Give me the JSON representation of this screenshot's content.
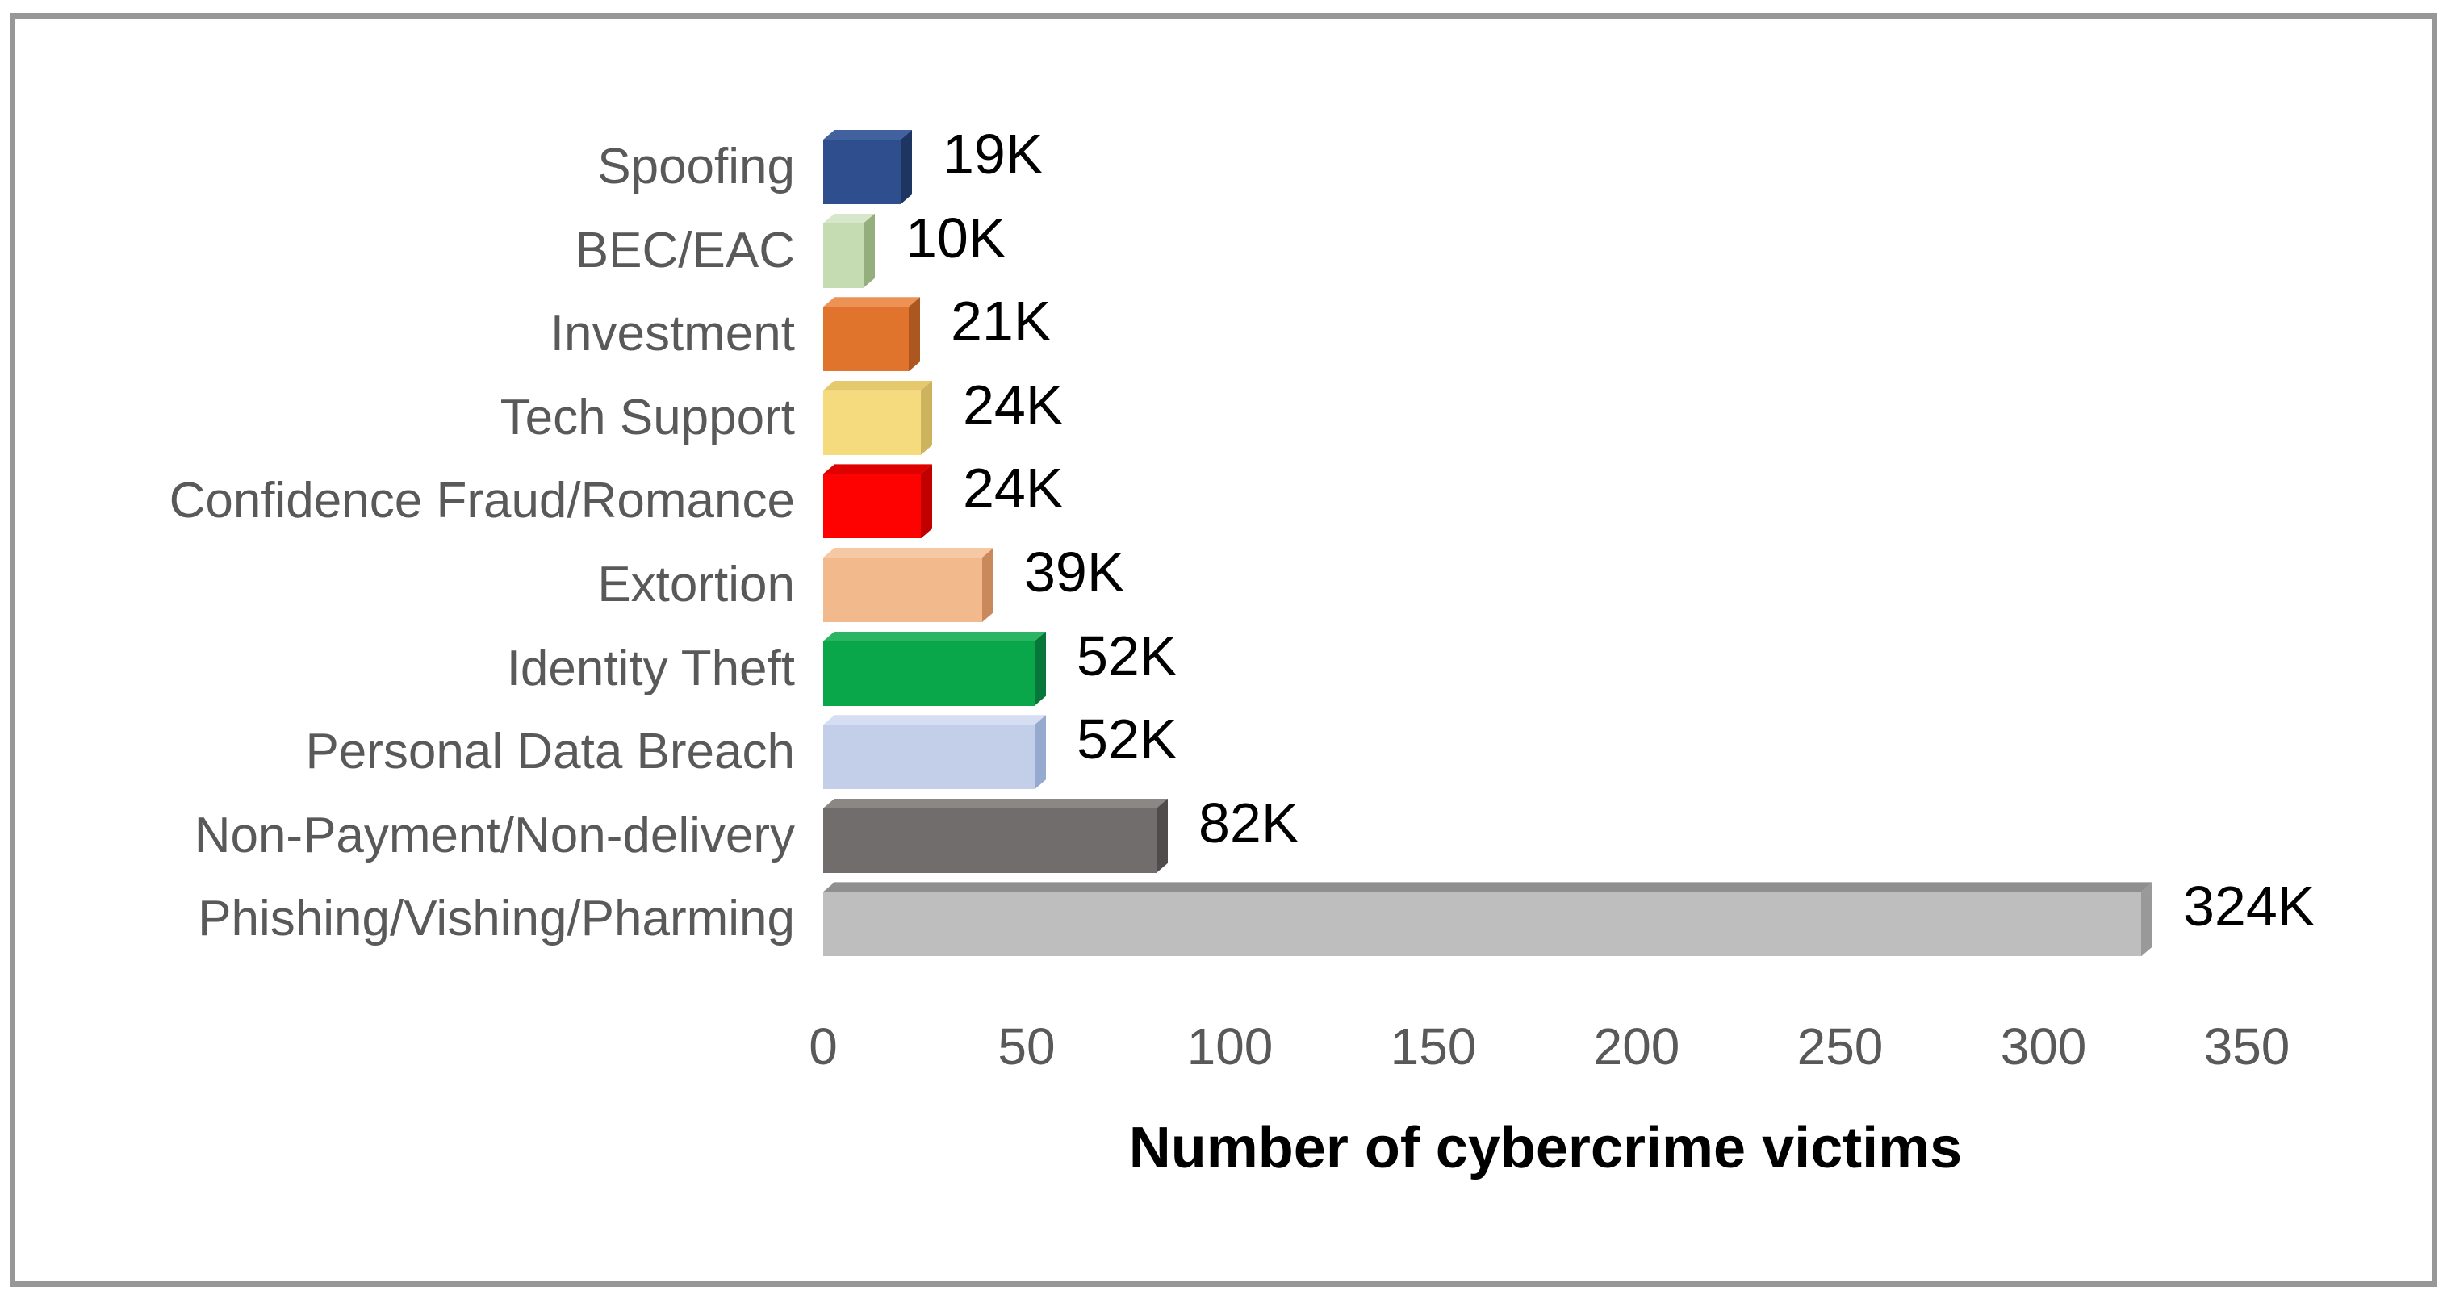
{
  "figure": {
    "background_color": "#FFFFFF",
    "border_color": "#979797"
  },
  "chart_data": {
    "type": "bar",
    "orientation": "horizontal",
    "title": "",
    "xlabel": "Number of cybercrime victims",
    "ylabel": "",
    "units": "thousands of victims",
    "xlim": [
      0,
      350
    ],
    "x_tick_labels": [
      "0",
      "50",
      "100",
      "150",
      "200",
      "250",
      "300",
      "350"
    ],
    "grid": false,
    "legend": "none",
    "category_label_color": "#595959",
    "tick_label_color": "#595959",
    "value_label_color": "#000000",
    "categories": [
      "Spoofing",
      "BEC/EAC",
      "Investment",
      "Tech Support",
      "Confidence Fraud/Romance",
      "Extortion",
      "Identity Theft",
      "Personal Data Breach",
      "Non-Payment/Non-delivery",
      "Phishing/Vishing/Pharming"
    ],
    "values": [
      19,
      10,
      21,
      24,
      24,
      39,
      52,
      52,
      82,
      324
    ],
    "bars": [
      {
        "category": "Spoofing",
        "value": 19,
        "label": "19K",
        "color": "#2E4E8E",
        "top_color": "#41619F",
        "side_color": "#1D3560"
      },
      {
        "category": "BEC/EAC",
        "value": 10,
        "label": "10K",
        "color": "#C5DCB2",
        "top_color": "#D7E7C9",
        "side_color": "#94AE7E"
      },
      {
        "category": "Investment",
        "value": 21,
        "label": "21K",
        "color": "#E0742D",
        "top_color": "#EC9254",
        "side_color": "#AC5620"
      },
      {
        "category": "Tech Support",
        "value": 24,
        "label": "24K",
        "color": "#F5DB7E",
        "top_color": "#E6C96C",
        "side_color": "#CDB35E"
      },
      {
        "category": "Confidence Fraud/Romance",
        "value": 24,
        "label": "24K",
        "color": "#FE0202",
        "top_color": "#DF0000",
        "side_color": "#C00000"
      },
      {
        "category": "Extortion",
        "value": 39,
        "label": "39K",
        "color": "#F2B98D",
        "top_color": "#F6C9A4",
        "side_color": "#C9895C"
      },
      {
        "category": "Identity Theft",
        "value": 52,
        "label": "52K",
        "color": "#09A64A",
        "top_color": "#2BB562",
        "side_color": "#07763B"
      },
      {
        "category": "Personal Data Breach",
        "value": 52,
        "label": "52K",
        "color": "#C3CFE9",
        "top_color": "#D5DEF2",
        "side_color": "#96A9CE"
      },
      {
        "category": "Non-Payment/Non-delivery",
        "value": 82,
        "label": "82K",
        "color": "#716D6C",
        "top_color": "#8A8785",
        "side_color": "#4F4C4B"
      },
      {
        "category": "Phishing/Vishing/Pharming",
        "value": 324,
        "label": "324K",
        "color": "#BEBEBE",
        "top_color": "#8F8F8F",
        "side_color": "#999999"
      }
    ]
  }
}
